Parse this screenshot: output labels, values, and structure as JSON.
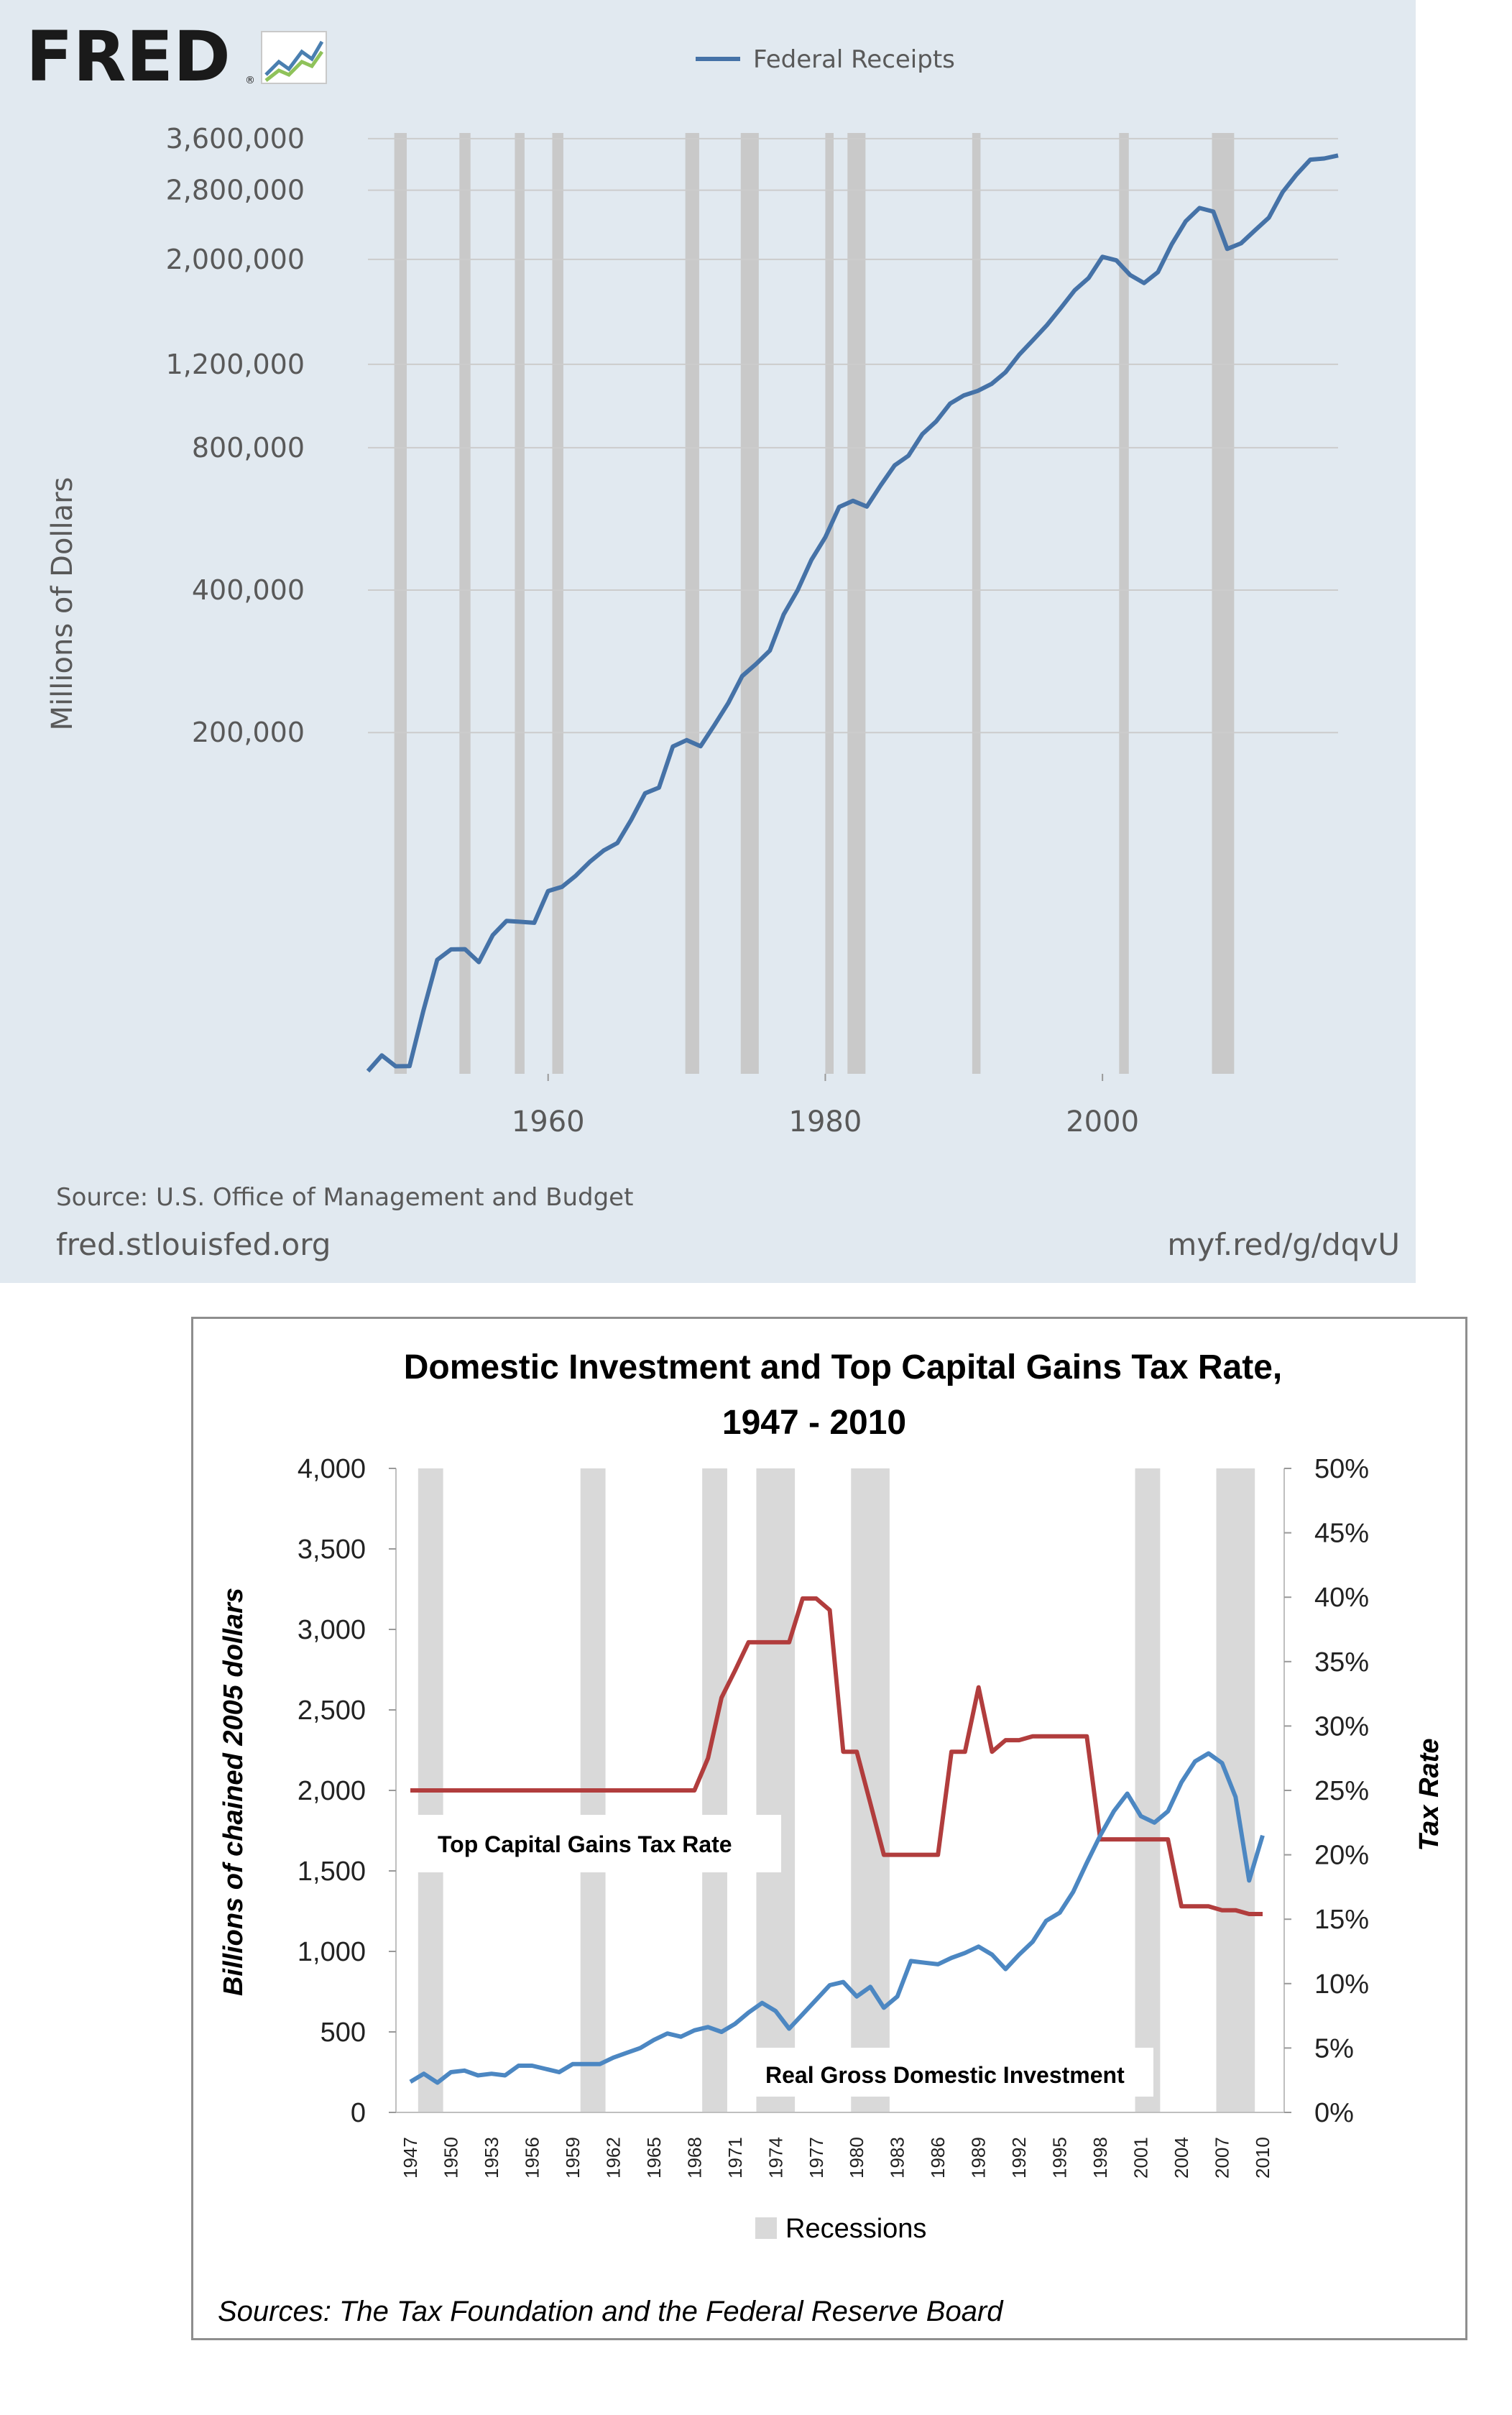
{
  "fred": {
    "logo_text": "FRED",
    "logo_reg": "®",
    "chart_title": "Federal Receipts",
    "ylabel": "Millions of Dollars",
    "source": "Source: U.S. Office of Management and Budget",
    "site": "fred.stlouisfed.org",
    "short_link": "myf.red/g/dqvU",
    "series_color": "#4572a7",
    "recession_color": "#c9c9c9",
    "y_ticks": [
      {
        "value": 3600000,
        "label": "3,600,000"
      },
      {
        "value": 2800000,
        "label": "2,800,000"
      },
      {
        "value": 2000000,
        "label": "2,000,000"
      },
      {
        "value": 1200000,
        "label": "1,200,000"
      },
      {
        "value": 800000,
        "label": "800,000"
      },
      {
        "value": 400000,
        "label": "400,000"
      },
      {
        "value": 200000,
        "label": "200,000"
      }
    ],
    "x_ticks": [
      {
        "value": 1960,
        "label": "1960"
      },
      {
        "value": 1980,
        "label": "1980"
      },
      {
        "value": 2000,
        "label": "2000"
      }
    ]
  },
  "tax": {
    "title_line1": "Domestic Investment and Top Capital Gains Tax Rate,",
    "title_line2": "1947 - 2010",
    "ylabel_left": "Billions of chained 2005 dollars",
    "ylabel_right": "Tax Rate",
    "series1_label": "Top Capital Gains Tax Rate",
    "series2_label": "Real Gross Domestic Investment",
    "legend_recessions": "Recessions",
    "sources": "Sources:  The Tax Foundation and the Federal Reserve Board",
    "tax_color": "#b13d3d",
    "investment_color": "#4c87c2",
    "recession_color": "#d9d9d9",
    "left_ticks": [
      "0",
      "500",
      "1,000",
      "1,500",
      "2,000",
      "2,500",
      "3,000",
      "3,500",
      "4,000"
    ],
    "right_ticks": [
      "0%",
      "5%",
      "10%",
      "15%",
      "20%",
      "25%",
      "30%",
      "35%",
      "40%",
      "45%",
      "50%"
    ],
    "x_labels": [
      "1947",
      "1950",
      "1953",
      "1956",
      "1959",
      "1962",
      "1965",
      "1968",
      "1971",
      "1974",
      "1977",
      "1980",
      "1983",
      "1986",
      "1989",
      "1992",
      "1995",
      "1998",
      "2001",
      "2004",
      "2007",
      "2010"
    ]
  },
  "chart_data": [
    {
      "type": "line",
      "title": "",
      "xlabel": "",
      "ylabel": "Millions of Dollars",
      "yscale": "log",
      "xlim": [
        1947,
        2017
      ],
      "ylim": [
        38000,
        3700000
      ],
      "legend": "top-center",
      "grid": true,
      "recessions": [
        [
          1948.9,
          1949.8
        ],
        [
          1953.6,
          1954.4
        ],
        [
          1957.6,
          1958.3
        ],
        [
          1960.3,
          1961.1
        ],
        [
          1969.9,
          1970.9
        ],
        [
          1973.9,
          1975.2
        ],
        [
          1980.0,
          1980.6
        ],
        [
          1981.6,
          1982.9
        ],
        [
          1990.6,
          1991.2
        ],
        [
          2001.2,
          2001.9
        ],
        [
          2007.9,
          2009.5
        ]
      ],
      "series": [
        {
          "name": "Federal Receipts",
          "x": [
            1947,
            1948,
            1949,
            1950,
            1951,
            1952,
            1953,
            1954,
            1955,
            1956,
            1957,
            1958,
            1959,
            1960,
            1961,
            1962,
            1963,
            1964,
            1965,
            1966,
            1967,
            1968,
            1969,
            1970,
            1971,
            1972,
            1973,
            1974,
            1975,
            1976,
            1977,
            1978,
            1979,
            1980,
            1981,
            1982,
            1983,
            1984,
            1985,
            1986,
            1987,
            1988,
            1989,
            1990,
            1991,
            1992,
            1993,
            1994,
            1995,
            1996,
            1997,
            1998,
            1999,
            2000,
            2001,
            2002,
            2003,
            2004,
            2005,
            2006,
            2007,
            2008,
            2009,
            2010,
            2011,
            2012,
            2013,
            2014,
            2015,
            2016,
            2017
          ],
          "y": [
            38514,
            41560,
            39415,
            39443,
            51616,
            66167,
            69608,
            69701,
            65451,
            74587,
            79990,
            79636,
            79249,
            92492,
            94388,
            99676,
            106560,
            112613,
            116817,
            130835,
            148822,
            152973,
            186882,
            192807,
            187139,
            207309,
            230799,
            263224,
            279090,
            298060,
            355559,
            399561,
            463302,
            517112,
            599272,
            617766,
            600562,
            666438,
            734037,
            769155,
            854287,
            909238,
            991104,
            1031958,
            1054988,
            1091208,
            1154335,
            1258566,
            1351790,
            1453053,
            1579232,
            1721728,
            1827452,
            2025191,
            1991082,
            1853136,
            1782314,
            1880114,
            2153611,
            2406869,
            2567985,
            2523991,
            2104989,
            2162706,
            2303466,
            2449988,
            2775106,
            3021487,
            3249886,
            3267961,
            3316182
          ]
        }
      ]
    },
    {
      "type": "line",
      "title": "Domestic Investment and Top Capital Gains Tax Rate, 1947 - 2010",
      "xlabel": "",
      "ylabel": "Billions of chained 2005 dollars",
      "ylabel_right": "Tax Rate",
      "xlim": [
        1947,
        2010
      ],
      "ylim": [
        0,
        4000
      ],
      "ylim_right": [
        0,
        50
      ],
      "legend": "bottom-center",
      "grid": false,
      "recessions": [
        [
          1948,
          1949
        ],
        [
          1960,
          1961
        ],
        [
          1969,
          1970
        ],
        [
          1973,
          1975
        ],
        [
          1980,
          1982
        ],
        [
          2001,
          2002
        ],
        [
          2007,
          2009
        ]
      ],
      "series": [
        {
          "name": "Top Capital Gains Tax Rate",
          "axis": "right",
          "x": [
            1947,
            1948,
            1949,
            1950,
            1951,
            1952,
            1953,
            1954,
            1955,
            1956,
            1957,
            1958,
            1959,
            1960,
            1961,
            1962,
            1963,
            1964,
            1965,
            1966,
            1967,
            1968,
            1969,
            1970,
            1971,
            1972,
            1973,
            1974,
            1975,
            1976,
            1977,
            1978,
            1979,
            1980,
            1981,
            1982,
            1983,
            1984,
            1985,
            1986,
            1987,
            1988,
            1989,
            1990,
            1991,
            1992,
            1993,
            1994,
            1995,
            1996,
            1997,
            1998,
            1999,
            2000,
            2001,
            2002,
            2003,
            2004,
            2005,
            2006,
            2007,
            2008,
            2009,
            2010
          ],
          "y": [
            25,
            25,
            25,
            25,
            25,
            25,
            25,
            25,
            25,
            25,
            25,
            25,
            25,
            25,
            25,
            25,
            25,
            25,
            25,
            25,
            25,
            25,
            27.5,
            32.2,
            34.3,
            36.5,
            36.5,
            36.5,
            36.5,
            39.9,
            39.9,
            39,
            28,
            28,
            24,
            20,
            20,
            20,
            20,
            20,
            28,
            28,
            33,
            28,
            28.9,
            28.9,
            29.2,
            29.2,
            29.2,
            29.2,
            29.2,
            21.2,
            21.2,
            21.2,
            21.2,
            21.2,
            21.2,
            16,
            16,
            16,
            15.7,
            15.7,
            15.4,
            15.4
          ]
        },
        {
          "name": "Real Gross Domestic Investment",
          "axis": "left",
          "x": [
            1947,
            1948,
            1949,
            1950,
            1951,
            1952,
            1953,
            1954,
            1955,
            1956,
            1957,
            1958,
            1959,
            1960,
            1961,
            1962,
            1963,
            1964,
            1965,
            1966,
            1967,
            1968,
            1969,
            1970,
            1971,
            1972,
            1973,
            1974,
            1975,
            1976,
            1977,
            1978,
            1979,
            1980,
            1981,
            1982,
            1983,
            1984,
            1985,
            1986,
            1987,
            1988,
            1989,
            1990,
            1991,
            1992,
            1993,
            1994,
            1995,
            1996,
            1997,
            1998,
            1999,
            2000,
            2001,
            2002,
            2003,
            2004,
            2005,
            2006,
            2007,
            2008,
            2009,
            2010
          ],
          "y": [
            190,
            240,
            185,
            250,
            260,
            230,
            240,
            230,
            290,
            290,
            270,
            250,
            300,
            300,
            300,
            340,
            370,
            400,
            450,
            490,
            470,
            510,
            530,
            500,
            550,
            620,
            680,
            630,
            520,
            610,
            700,
            790,
            810,
            720,
            780,
            650,
            720,
            940,
            930,
            920,
            960,
            990,
            1030,
            980,
            890,
            980,
            1060,
            1190,
            1240,
            1370,
            1550,
            1720,
            1870,
            1980,
            1840,
            1800,
            1870,
            2050,
            2180,
            2230,
            2170,
            1960,
            1440,
            1720
          ]
        }
      ]
    }
  ]
}
